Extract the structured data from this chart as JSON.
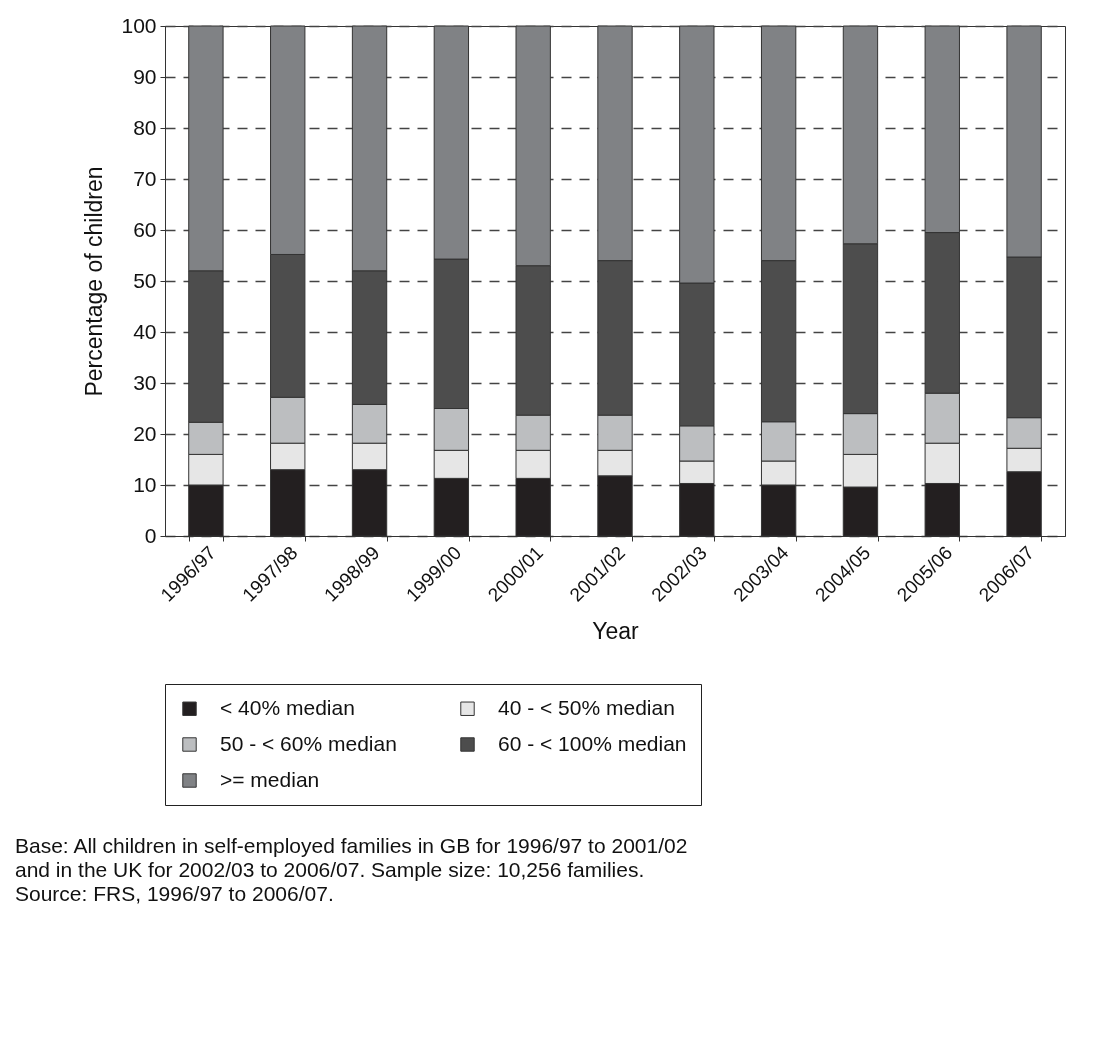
{
  "chart_data": {
    "type": "bar",
    "stacked": true,
    "categories": [
      "1996/97",
      "1997/98",
      "1998/99",
      "1999/00",
      "2000/01",
      "2001/02",
      "2002/03",
      "2003/04",
      "2004/05",
      "2005/06",
      "2006/07"
    ],
    "series": [
      {
        "name": "< 40% median",
        "color": "#231f20",
        "values": [
          10,
          13,
          13,
          11.3,
          11.3,
          11.8,
          10.3,
          10,
          9.6,
          10.3,
          12.6
        ]
      },
      {
        "name": "40 - < 50% median",
        "color": "#e6e6e6",
        "values": [
          6,
          5.2,
          5.2,
          5.5,
          5.5,
          5,
          4.4,
          4.7,
          6.4,
          7.9,
          4.6
        ]
      },
      {
        "name": "50 - < 60% median",
        "color": "#bcbec0",
        "values": [
          6.3,
          9,
          7.6,
          8.2,
          6.9,
          6.9,
          6.9,
          7.7,
          8,
          9.8,
          6
        ]
      },
      {
        "name": "60 - < 100% median",
        "color": "#4d4d4d",
        "values": [
          29.7,
          28,
          26.2,
          29.3,
          29.3,
          30.3,
          28,
          31.6,
          33.3,
          31.5,
          31.5
        ]
      },
      {
        "name": ">= median",
        "color": "#808285",
        "values": [
          48,
          44.8,
          48,
          45.7,
          47,
          46,
          50.4,
          46,
          42.7,
          40.5,
          45.3
        ]
      }
    ],
    "xlabel": "Year",
    "ylabel": "Percentage of children",
    "ylim": [
      0,
      100
    ],
    "yticks": [
      0,
      10,
      20,
      30,
      40,
      50,
      60,
      70,
      80,
      90,
      100
    ],
    "grid": "y",
    "legend": "bottom",
    "annotations": [
      "Base: All children in self-employed families in GB for 1996/97 to 2001/02",
      "and in the UK for 2002/03 to 2006/07. Sample size: 10,256 families.",
      "Source: FRS, 1996/97 to 2006/07."
    ]
  }
}
